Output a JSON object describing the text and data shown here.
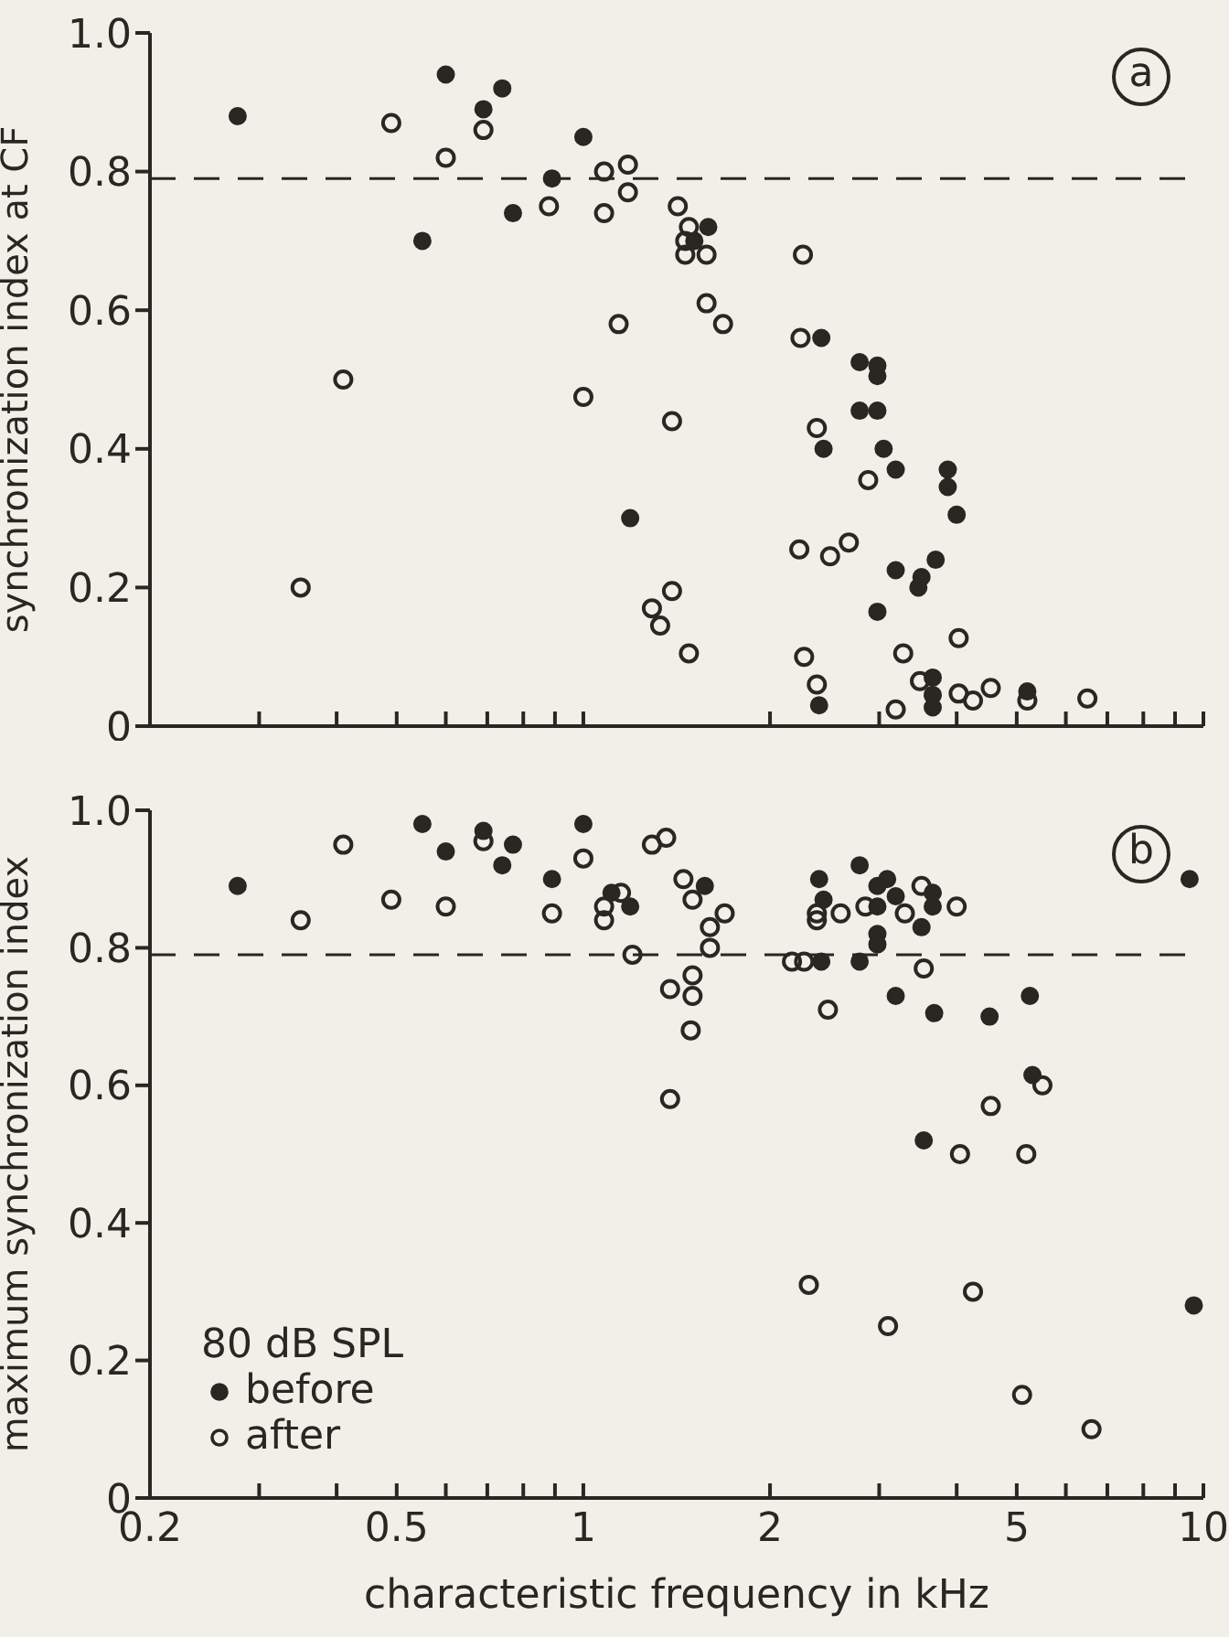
{
  "chart_data": [
    {
      "type": "scatter",
      "ylabel": "synchronization index at CF",
      "annotations": [
        "a"
      ],
      "log": "x",
      "xlim": [
        0.2,
        10
      ],
      "xticks": [
        {
          "value": 0.2,
          "label": null
        },
        {
          "value": 0.3,
          "label": null
        },
        {
          "value": 0.4,
          "label": null
        },
        {
          "value": 0.5,
          "label": null
        },
        {
          "value": 0.6,
          "label": null
        },
        {
          "value": 0.7,
          "label": null
        },
        {
          "value": 0.8,
          "label": null
        },
        {
          "value": 0.9,
          "label": null
        },
        {
          "value": 1,
          "label": null
        },
        {
          "value": 2,
          "label": null
        },
        {
          "value": 3,
          "label": null
        },
        {
          "value": 4,
          "label": null
        },
        {
          "value": 5,
          "label": null
        },
        {
          "value": 6,
          "label": null
        },
        {
          "value": 7,
          "label": null
        },
        {
          "value": 8,
          "label": null
        },
        {
          "value": 9,
          "label": null
        },
        {
          "value": 10,
          "label": null
        }
      ],
      "ylim": [
        0,
        1
      ],
      "yticks": [
        0,
        0.2,
        0.4,
        0.6,
        0.8,
        {
          "value": 1,
          "label": "1.0"
        }
      ],
      "tick_labels": "y",
      "marker": "circle",
      "legend": false,
      "ref_lines": [
        {
          "axis": "y",
          "value": 0.79,
          "line_style": "dashed",
          "color": "#2a2622"
        }
      ],
      "series": [
        {
          "color": "#2a2622",
          "x": [
            0.277,
            0.6,
            0.74,
            0.69,
            1.0,
            0.89,
            0.77,
            0.55,
            1.59,
            1.51,
            1.19,
            2.42,
            2.79,
            2.98,
            2.98,
            2.79,
            2.98,
            2.44,
            3.05,
            3.19,
            3.87,
            3.87,
            4.0,
            3.19,
            3.51,
            3.47,
            3.7,
            2.98,
            2.4,
            3.66,
            3.66,
            3.66,
            5.2
          ],
          "values": [
            0.88,
            0.94,
            0.92,
            0.89,
            0.85,
            0.79,
            0.74,
            0.7,
            0.72,
            0.7,
            0.3,
            0.56,
            0.525,
            0.52,
            0.505,
            0.455,
            0.455,
            0.4,
            0.4,
            0.37,
            0.37,
            0.345,
            0.305,
            0.225,
            0.215,
            0.2,
            0.24,
            0.165,
            0.03,
            0.07,
            0.045,
            0.027,
            0.05
          ]
        },
        {
          "color": "#2a2622",
          "x": [
            0.49,
            0.6,
            0.69,
            0.88,
            1.08,
            1.08,
            0.41,
            0.35,
            1.0,
            1.14,
            1.18,
            1.18,
            1.42,
            1.48,
            1.46,
            1.46,
            1.58,
            1.58,
            1.68,
            1.39,
            1.29,
            1.39,
            1.33,
            1.48,
            2.26,
            2.24,
            2.38,
            2.88,
            2.23,
            2.5,
            2.68,
            2.27,
            2.38,
            3.19,
            3.28,
            3.49,
            4.03,
            4.03,
            4.25,
            4.54,
            5.2,
            6.5
          ],
          "values": [
            0.87,
            0.82,
            0.86,
            0.75,
            0.8,
            0.74,
            0.5,
            0.2,
            0.475,
            0.58,
            0.81,
            0.77,
            0.75,
            0.72,
            0.7,
            0.68,
            0.68,
            0.61,
            0.58,
            0.44,
            0.17,
            0.195,
            0.145,
            0.105,
            0.68,
            0.56,
            0.43,
            0.355,
            0.255,
            0.245,
            0.265,
            0.1,
            0.06,
            0.024,
            0.105,
            0.065,
            0.127,
            0.047,
            0.037,
            0.055,
            0.037,
            0.04
          ]
        }
      ]
    },
    {
      "type": "scatter",
      "xlabel": "characteristic frequency in kHz",
      "ylabel": "maximum synchronization index",
      "legend_title": "80 dB SPL",
      "annotations": [
        "b"
      ],
      "log": "x",
      "xlim": [
        0.2,
        10
      ],
      "xticks": [
        0.2,
        {
          "value": 0.3,
          "label": null
        },
        {
          "value": 0.4,
          "label": null
        },
        0.5,
        {
          "value": 0.6,
          "label": null
        },
        {
          "value": 0.7,
          "label": null
        },
        {
          "value": 0.8,
          "label": null
        },
        {
          "value": 0.9,
          "label": null
        },
        1,
        2,
        {
          "value": 3,
          "label": null
        },
        {
          "value": 4,
          "label": null
        },
        5,
        {
          "value": 6,
          "label": null
        },
        {
          "value": 7,
          "label": null
        },
        {
          "value": 8,
          "label": null
        },
        {
          "value": 9,
          "label": null
        },
        10
      ],
      "ylim": [
        0,
        1
      ],
      "yticks": [
        0,
        0.2,
        0.4,
        0.6,
        0.8,
        {
          "value": 1,
          "label": "1.0"
        }
      ],
      "marker": "circle",
      "legend": "bottom left",
      "ref_lines": [
        {
          "axis": "y",
          "value": 0.79,
          "line_style": "dashed",
          "color": "#2a2622"
        }
      ],
      "series": [
        {
          "name": "before",
          "color": "#2a2622",
          "x": [
            0.277,
            0.55,
            0.6,
            0.69,
            0.74,
            0.77,
            0.89,
            1.0,
            1.11,
            1.19,
            1.57,
            2.4,
            2.44,
            2.42,
            2.79,
            2.98,
            3.09,
            3.19,
            2.98,
            2.98,
            2.98,
            2.79,
            3.66,
            3.66,
            3.51,
            3.19,
            3.68,
            4.52,
            5.25,
            5.3,
            3.54,
            9.5,
            9.65
          ],
          "values": [
            0.89,
            0.98,
            0.94,
            0.97,
            0.92,
            0.95,
            0.9,
            0.98,
            0.88,
            0.86,
            0.89,
            0.9,
            0.87,
            0.78,
            0.92,
            0.89,
            0.9,
            0.875,
            0.86,
            0.82,
            0.805,
            0.78,
            0.88,
            0.86,
            0.83,
            0.73,
            0.705,
            0.7,
            0.73,
            0.615,
            0.52,
            0.9,
            0.28
          ]
        },
        {
          "name": "after",
          "color": "#2a2622",
          "x": [
            0.35,
            0.41,
            0.49,
            0.6,
            0.69,
            0.89,
            1.0,
            1.08,
            1.08,
            1.29,
            1.36,
            1.15,
            1.2,
            1.45,
            1.5,
            1.69,
            1.6,
            1.6,
            1.38,
            1.5,
            1.5,
            1.49,
            1.38,
            2.17,
            2.27,
            2.38,
            2.38,
            2.6,
            2.85,
            3.3,
            3.51,
            4.0,
            3.54,
            2.48,
            5.5,
            4.54,
            4.05,
            5.18,
            2.31,
            4.25,
            3.1,
            5.1,
            6.6
          ],
          "values": [
            0.84,
            0.95,
            0.87,
            0.86,
            0.955,
            0.85,
            0.93,
            0.84,
            0.86,
            0.95,
            0.96,
            0.88,
            0.79,
            0.9,
            0.87,
            0.85,
            0.83,
            0.8,
            0.74,
            0.76,
            0.73,
            0.68,
            0.58,
            0.78,
            0.78,
            0.84,
            0.85,
            0.85,
            0.86,
            0.85,
            0.89,
            0.86,
            0.77,
            0.71,
            0.6,
            0.57,
            0.5,
            0.5,
            0.31,
            0.3,
            0.25,
            0.15,
            0.1
          ]
        }
      ]
    }
  ]
}
